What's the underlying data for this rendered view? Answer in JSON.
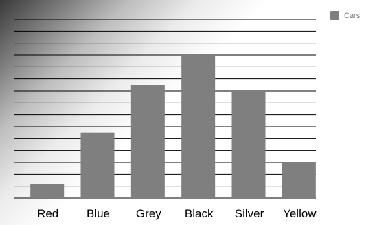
{
  "chart_data": {
    "type": "bar",
    "categories": [
      "Red",
      "Blue",
      "Grey",
      "Black",
      "Silver",
      "Yellow"
    ],
    "series": [
      {
        "name": "Cars",
        "values": [
          1.2,
          5.5,
          9.5,
          12,
          9,
          3
        ]
      }
    ],
    "ylim": [
      0,
      15
    ],
    "grid": true,
    "legend": "top-right",
    "colors": {
      "bar": "#7f7f7f",
      "grid": "#000000",
      "axis_text": "#000000"
    }
  }
}
